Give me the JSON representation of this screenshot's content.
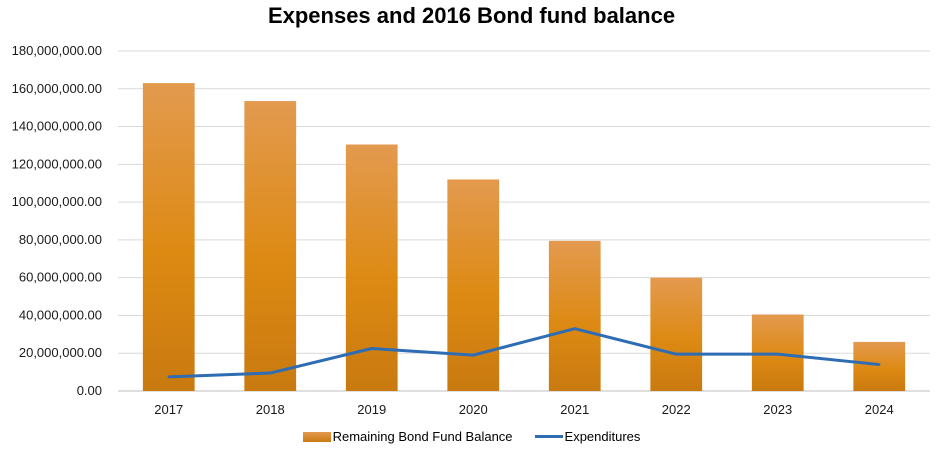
{
  "colors": {
    "bar_top": "#E39A4F",
    "bar_mid": "#DD8A13",
    "bar_bottom": "#C97A10",
    "line": "#2E6DB4",
    "grid": "#D9D9D9",
    "axis": "#BFBFBF"
  },
  "chart_data": {
    "type": "bar",
    "title": "Expenses and 2016 Bond fund balance",
    "xlabel": "",
    "ylabel": "",
    "categories": [
      "2017",
      "2018",
      "2019",
      "2020",
      "2021",
      "2022",
      "2023",
      "2024"
    ],
    "ylim": [
      0,
      180000000
    ],
    "yticks": [
      0,
      20000000,
      40000000,
      60000000,
      80000000,
      100000000,
      120000000,
      140000000,
      160000000,
      180000000
    ],
    "ytick_labels": [
      "0.00",
      "20,000,000.00",
      "40,000,000.00",
      "60,000,000.00",
      "80,000,000.00",
      "100,000,000.00",
      "120,000,000.00",
      "140,000,000.00",
      "160,000,000.00",
      "180,000,000.00"
    ],
    "grid": true,
    "legend_position": "bottom",
    "series": [
      {
        "name": "Remaining Bond Fund Balance",
        "type": "bar",
        "values": [
          163000000,
          153500000,
          130500000,
          112000000,
          79500000,
          60000000,
          40500000,
          26000000
        ]
      },
      {
        "name": "Expenditures",
        "type": "line",
        "values": [
          7500000,
          9500000,
          22500000,
          19000000,
          33000000,
          19500000,
          19500000,
          14000000
        ]
      }
    ]
  }
}
